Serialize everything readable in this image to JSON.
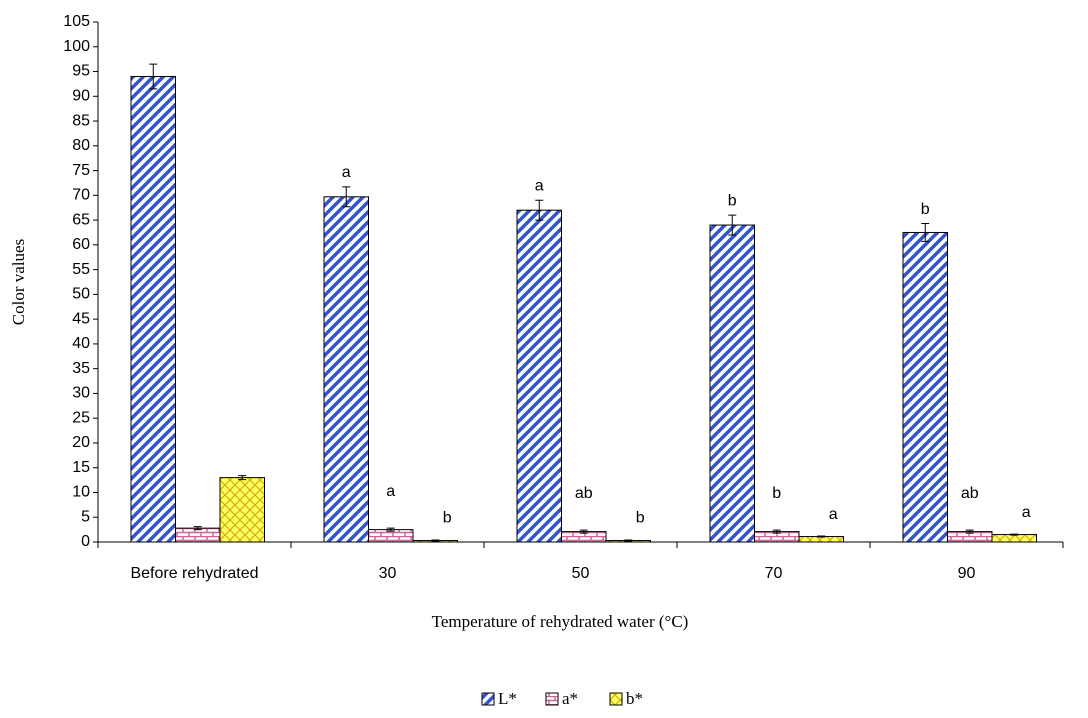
{
  "chart_data": {
    "type": "bar",
    "x_label": "Temperature of rehydrated water (°C)",
    "y_label": "Color values",
    "categories": [
      "Before rehydrated",
      "30",
      "50",
      "70",
      "90"
    ],
    "series": [
      {
        "name": "L*",
        "color": "#3355cc",
        "values": [
          94,
          69.7,
          67,
          64,
          62.5
        ],
        "errors": [
          2.5,
          2,
          2,
          2,
          1.8
        ],
        "letters": [
          null,
          "a",
          "a",
          "b",
          "b"
        ]
      },
      {
        "name": "a*",
        "color": "#cc6699",
        "values": [
          2.8,
          2.5,
          2.1,
          2.1,
          2.1
        ],
        "errors": [
          0.3,
          0.3,
          0.3,
          0.3,
          0.3
        ],
        "letters": [
          null,
          "a",
          "ab",
          "b",
          "ab"
        ]
      },
      {
        "name": "b*",
        "color": "#ffff66",
        "values": [
          13,
          0.3,
          0.3,
          1.1,
          1.5
        ],
        "errors": [
          0.4,
          0.1,
          0.1,
          0.1,
          0.1
        ],
        "letters": [
          null,
          "b",
          "b",
          "a",
          "a"
        ]
      }
    ],
    "ylim": [
      0,
      105
    ],
    "yticks": [
      0,
      5,
      10,
      15,
      20,
      25,
      30,
      35,
      40,
      45,
      50,
      55,
      60,
      65,
      70,
      75,
      80,
      85,
      90,
      95,
      100,
      105
    ],
    "legend": "bottom"
  }
}
